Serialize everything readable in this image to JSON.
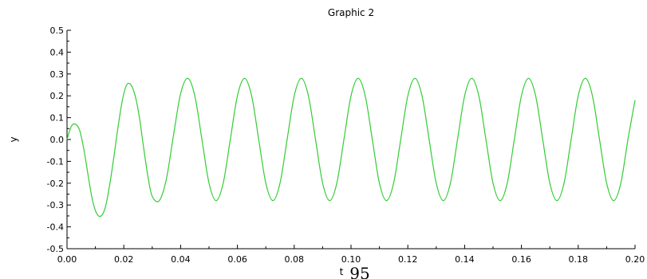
{
  "chart_data": {
    "type": "line",
    "title": "Graphic 2",
    "xlabel": "t",
    "ylabel": "y",
    "xlim": [
      0,
      0.2
    ],
    "ylim": [
      -0.5,
      0.5
    ],
    "x_ticks": [
      "0.00",
      "0.02",
      "0.04",
      "0.06",
      "0.08",
      "0.10",
      "0.12",
      "0.14",
      "0.16",
      "0.18",
      "0.20"
    ],
    "y_ticks": [
      "0.5",
      "0.4",
      "0.3",
      "0.2",
      "0.1",
      "0.0",
      "-0.1",
      "-0.2",
      "-0.3",
      "-0.4",
      "-0.5"
    ],
    "grid": false,
    "series": [
      {
        "color": "#33cc33",
        "x": [
          0.0,
          0.0015,
          0.003,
          0.0045,
          0.006,
          0.0075,
          0.009,
          0.0105,
          0.012,
          0.0135,
          0.015,
          0.0165,
          0.018,
          0.0195,
          0.021,
          0.0225,
          0.024,
          0.0255,
          0.027,
          0.0285,
          0.03,
          0.0325,
          0.035,
          0.0375,
          0.04,
          0.0425,
          0.045,
          0.0475,
          0.05,
          0.0525,
          0.055,
          0.0575,
          0.06,
          0.0625,
          0.065,
          0.0675,
          0.07,
          0.0725,
          0.075,
          0.0775,
          0.08,
          0.0825,
          0.085,
          0.0875,
          0.09,
          0.0925,
          0.095,
          0.0975,
          0.1,
          0.1025,
          0.105,
          0.1075,
          0.11,
          0.1125,
          0.115,
          0.1175,
          0.12,
          0.1225,
          0.125,
          0.1275,
          0.13,
          0.1325,
          0.135,
          0.1375,
          0.14,
          0.1425,
          0.145,
          0.1475,
          0.15,
          0.1525,
          0.155,
          0.1575,
          0.16,
          0.1625,
          0.165,
          0.1675,
          0.17,
          0.1725,
          0.175,
          0.1775,
          0.18,
          0.1825,
          0.185,
          0.1875,
          0.19,
          0.1925,
          0.195,
          0.1975,
          0.2
        ],
        "y": [
          0.0,
          0.06,
          0.07,
          0.04,
          -0.05,
          -0.17,
          -0.28,
          -0.34,
          -0.35,
          -0.31,
          -0.21,
          -0.08,
          0.06,
          0.18,
          0.25,
          0.25,
          0.2,
          0.1,
          -0.04,
          -0.17,
          -0.26,
          -0.28,
          -0.18,
          0.02,
          0.21,
          0.28,
          0.2,
          0.0,
          -0.2,
          -0.28,
          -0.2,
          0.0,
          0.2,
          0.28,
          0.2,
          0.0,
          -0.2,
          -0.28,
          -0.2,
          0.0,
          0.2,
          0.28,
          0.2,
          0.0,
          -0.2,
          -0.28,
          -0.2,
          0.0,
          0.2,
          0.28,
          0.2,
          0.0,
          -0.2,
          -0.28,
          -0.2,
          0.0,
          0.2,
          0.28,
          0.2,
          0.0,
          -0.2,
          -0.28,
          -0.2,
          0.0,
          0.2,
          0.28,
          0.2,
          0.0,
          -0.2,
          -0.28,
          -0.2,
          0.0,
          0.2,
          0.28,
          0.2,
          0.0,
          -0.2,
          -0.28,
          -0.2,
          0.0,
          0.2,
          0.28,
          0.2,
          0.0,
          -0.2,
          -0.28,
          -0.2,
          0.0,
          0.18
        ]
      }
    ]
  },
  "page": {
    "number": "95"
  }
}
